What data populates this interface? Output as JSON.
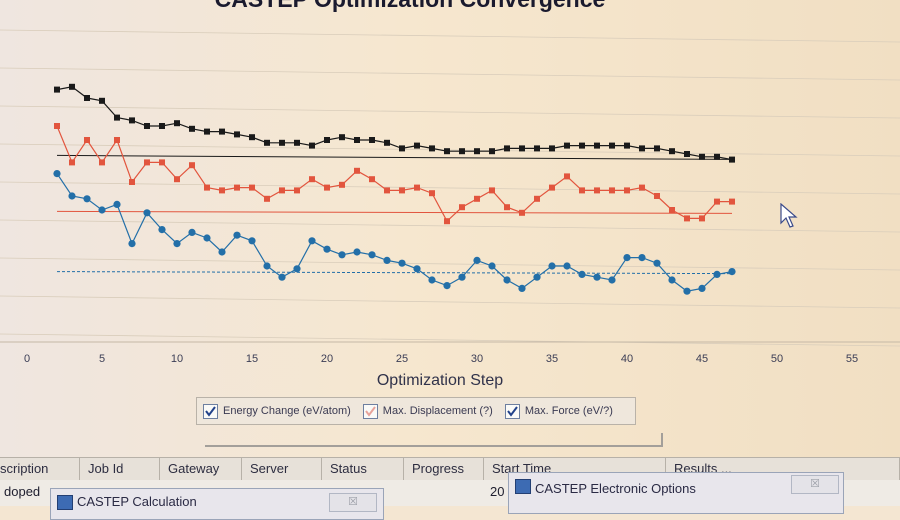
{
  "chart_data": {
    "type": "line",
    "title": "CASTEP Optimization Convergence",
    "xlabel": "Optimization Step",
    "xlim": [
      0,
      58
    ],
    "xticks": [
      0,
      5,
      10,
      15,
      20,
      25,
      30,
      35,
      40,
      45,
      50,
      55
    ],
    "series": [
      {
        "name": "Energy Change (eV/atom)",
        "color": "#1a1a1a",
        "x": [
          2,
          3,
          4,
          5,
          6,
          7,
          8,
          9,
          10,
          11,
          12,
          13,
          14,
          15,
          16,
          17,
          18,
          19,
          20,
          21,
          22,
          23,
          24,
          25,
          26,
          27,
          28,
          29,
          30,
          31,
          32,
          33,
          34,
          35,
          36,
          37,
          38,
          39,
          40,
          41,
          42,
          43,
          44,
          45,
          46,
          47
        ],
        "y": [
          0.93,
          0.94,
          0.9,
          0.89,
          0.83,
          0.82,
          0.8,
          0.8,
          0.81,
          0.79,
          0.78,
          0.78,
          0.77,
          0.76,
          0.74,
          0.74,
          0.74,
          0.73,
          0.75,
          0.76,
          0.75,
          0.75,
          0.74,
          0.72,
          0.73,
          0.72,
          0.71,
          0.71,
          0.71,
          0.71,
          0.72,
          0.72,
          0.72,
          0.72,
          0.73,
          0.73,
          0.73,
          0.73,
          0.73,
          0.72,
          0.72,
          0.71,
          0.7,
          0.69,
          0.69,
          0.68
        ],
        "threshold": 0.695
      },
      {
        "name": "Max. Displacement (?)",
        "color": "#e2553e",
        "x": [
          2,
          3,
          4,
          5,
          6,
          7,
          8,
          9,
          10,
          11,
          12,
          13,
          14,
          15,
          16,
          17,
          18,
          19,
          20,
          21,
          22,
          23,
          24,
          25,
          26,
          27,
          28,
          29,
          30,
          31,
          32,
          33,
          34,
          35,
          36,
          37,
          38,
          39,
          40,
          41,
          42,
          43,
          44,
          45,
          46,
          47
        ],
        "y": [
          0.8,
          0.67,
          0.75,
          0.67,
          0.75,
          0.6,
          0.67,
          0.67,
          0.61,
          0.66,
          0.58,
          0.57,
          0.58,
          0.58,
          0.54,
          0.57,
          0.57,
          0.61,
          0.58,
          0.59,
          0.64,
          0.61,
          0.57,
          0.57,
          0.58,
          0.56,
          0.46,
          0.51,
          0.54,
          0.57,
          0.51,
          0.49,
          0.54,
          0.58,
          0.62,
          0.57,
          0.57,
          0.57,
          0.57,
          0.58,
          0.55,
          0.5,
          0.47,
          0.47,
          0.53,
          0.53
        ],
        "threshold": 0.495
      },
      {
        "name": "Max. Force (eV/?)",
        "color": "#236fa8",
        "x": [
          2,
          3,
          4,
          5,
          6,
          7,
          8,
          9,
          10,
          11,
          12,
          13,
          14,
          15,
          16,
          17,
          18,
          19,
          20,
          21,
          22,
          23,
          24,
          25,
          26,
          27,
          28,
          29,
          30,
          31,
          32,
          33,
          34,
          35,
          36,
          37,
          38,
          39,
          40,
          41,
          42,
          43,
          44,
          45,
          46,
          47
        ],
        "y": [
          0.63,
          0.55,
          0.54,
          0.5,
          0.52,
          0.38,
          0.49,
          0.43,
          0.38,
          0.42,
          0.4,
          0.35,
          0.41,
          0.39,
          0.3,
          0.26,
          0.29,
          0.39,
          0.36,
          0.34,
          0.35,
          0.34,
          0.32,
          0.31,
          0.29,
          0.25,
          0.23,
          0.26,
          0.32,
          0.3,
          0.25,
          0.22,
          0.26,
          0.3,
          0.3,
          0.27,
          0.26,
          0.25,
          0.33,
          0.33,
          0.31,
          0.25,
          0.21,
          0.22,
          0.27,
          0.28
        ],
        "threshold": 0.28
      }
    ]
  },
  "legend": {
    "items": [
      "Energy Change (eV/atom)",
      "Max. Displacement (?)",
      "Max. Force (eV/?)"
    ]
  },
  "table": {
    "headers": [
      "scription",
      "Job Id",
      "Gateway",
      "Server",
      "Status",
      "Progress",
      "Start Time",
      "Results ..."
    ],
    "row": {
      "description": "doped",
      "start": "20"
    }
  },
  "dialogs": [
    {
      "title": "CASTEP Calculation",
      "close": "☒"
    },
    {
      "title": "CASTEP Electronic Options",
      "close": "☒"
    }
  ]
}
